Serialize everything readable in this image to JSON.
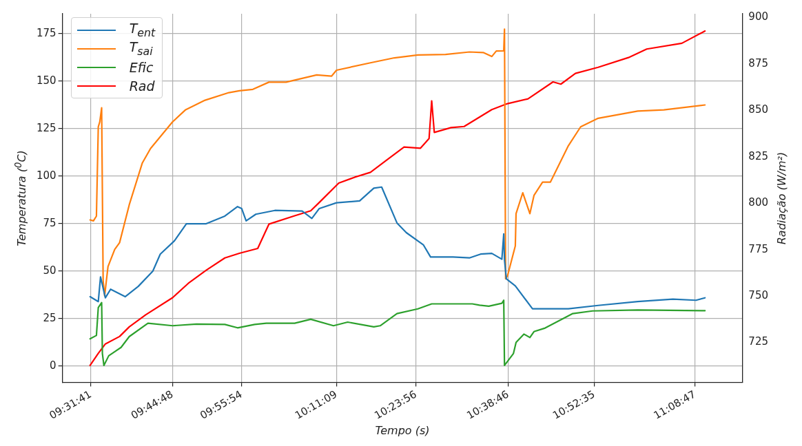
{
  "chart_data": {
    "type": "line",
    "xlabel": "Tempo (s)",
    "ylabel": "Temperatura ($^{0}$C)",
    "y2label": "Radiação (W/m²)",
    "xlim": [
      9.452,
      11.273
    ],
    "xticks": [
      {
        "value": 9.5281,
        "label": "09:31:41"
      },
      {
        "value": 9.7467,
        "label": "09:44:48"
      },
      {
        "value": 9.9317,
        "label": "09:55:54"
      },
      {
        "value": 10.1858,
        "label": "10:11:09"
      },
      {
        "value": 10.3989,
        "label": "10:23:56"
      },
      {
        "value": 10.6461,
        "label": "10:38:46"
      },
      {
        "value": 10.8764,
        "label": "10:52:35"
      },
      {
        "value": 11.1464,
        "label": "11:08:47"
      }
    ],
    "ylim": [
      -8.5,
      185.5
    ],
    "yticks": [
      0,
      25,
      50,
      75,
      100,
      125,
      150,
      175
    ],
    "y2lim": [
      703.5,
      902
    ],
    "y2ticks": [
      725,
      750,
      775,
      800,
      825,
      850,
      875,
      900
    ],
    "grid": true,
    "legend": "top left",
    "marker": "none",
    "line_style": "solid",
    "series": [
      {
        "name": "T$_{ent}$",
        "color": "#1f77b4",
        "x": [
          9.526,
          9.548,
          9.554,
          9.567,
          9.581,
          9.62,
          9.655,
          9.694,
          9.714,
          9.752,
          9.784,
          9.837,
          9.887,
          9.921,
          9.932,
          9.944,
          9.97,
          10.021,
          10.094,
          10.12,
          10.14,
          10.186,
          10.248,
          10.286,
          10.307,
          10.348,
          10.373,
          10.419,
          10.438,
          10.498,
          10.542,
          10.572,
          10.602,
          10.629,
          10.634,
          10.636,
          10.641,
          10.665,
          10.711,
          10.807,
          10.887,
          10.993,
          11.087,
          11.149,
          11.173
        ],
        "values": [
          36.6,
          34,
          47,
          36,
          40.5,
          36.6,
          42,
          50,
          59,
          66,
          75,
          75,
          79,
          84,
          83,
          76.5,
          80,
          82,
          81.7,
          77.8,
          83,
          86,
          87,
          93.7,
          94.3,
          75.4,
          70.3,
          63.8,
          57.5,
          57.5,
          57,
          59,
          59.4,
          56.3,
          69.6,
          56,
          46,
          42.3,
          30.2,
          30.2,
          32,
          34,
          35.3,
          34.7,
          36
        ]
      },
      {
        "name": "T$_{sai}$",
        "color": "#ff7f0e",
        "x": [
          9.526,
          9.535,
          9.543,
          9.548,
          9.552,
          9.557,
          9.561,
          9.565,
          9.574,
          9.592,
          9.605,
          9.631,
          9.666,
          9.688,
          9.747,
          9.782,
          9.834,
          9.898,
          9.926,
          9.962,
          10.005,
          10.051,
          10.133,
          10.173,
          10.186,
          10.277,
          10.341,
          10.404,
          10.478,
          10.542,
          10.579,
          10.602,
          10.614,
          10.634,
          10.636,
          10.639,
          10.644,
          10.665,
          10.667,
          10.685,
          10.704,
          10.715,
          10.738,
          10.759,
          10.807,
          10.84,
          10.887,
          10.993,
          11.063,
          11.173
        ],
        "values": [
          77,
          76.5,
          79,
          126,
          128.6,
          136,
          45,
          37,
          52.4,
          61.5,
          65,
          85,
          107,
          114.6,
          128.6,
          135,
          140,
          144,
          145,
          145.7,
          149.5,
          149.5,
          153.3,
          152.7,
          155.8,
          159.7,
          162.3,
          163.8,
          164.1,
          165.4,
          165.1,
          163,
          165.9,
          166,
          177.4,
          46,
          47.5,
          63.3,
          80.3,
          91.3,
          80.3,
          89.9,
          96.9,
          96.9,
          116,
          126,
          130.5,
          134.3,
          134.9,
          137.5
        ]
      },
      {
        "name": "Efic",
        "color": "#2ca02c",
        "x": [
          9.526,
          9.543,
          9.548,
          9.557,
          9.559,
          9.563,
          9.576,
          9.609,
          9.631,
          9.681,
          9.747,
          9.811,
          9.887,
          9.921,
          9.967,
          9.998,
          10.074,
          10.117,
          10.178,
          10.216,
          10.286,
          10.303,
          10.348,
          10.404,
          10.441,
          10.55,
          10.569,
          10.594,
          10.629,
          10.634,
          10.636,
          10.66,
          10.667,
          10.688,
          10.704,
          10.715,
          10.745,
          10.819,
          10.872,
          10.993,
          11.173
        ],
        "values": [
          14.4,
          16.2,
          30.9,
          33.5,
          6.7,
          0.4,
          5.5,
          9.9,
          15.6,
          22.6,
          21.3,
          22.2,
          22,
          20.2,
          22,
          22.6,
          22.6,
          24.7,
          21.3,
          23.2,
          20.7,
          21.3,
          27.7,
          30.2,
          32.8,
          32.8,
          32.1,
          31.6,
          33.1,
          34.7,
          0.4,
          6.7,
          12.5,
          16.9,
          15.1,
          18.2,
          20.1,
          27.7,
          29.1,
          29.6,
          29.2
        ]
      },
      {
        "name": "Rad",
        "color": "#ff0000",
        "axis": "y2",
        "x": [
          9.526,
          9.548,
          9.567,
          9.605,
          9.631,
          9.675,
          9.747,
          9.789,
          9.837,
          9.887,
          9.926,
          9.975,
          10.005,
          10.074,
          10.117,
          10.14,
          10.192,
          10.235,
          10.277,
          10.316,
          10.367,
          10.411,
          10.434,
          10.441,
          10.448,
          10.493,
          10.528,
          10.602,
          10.644,
          10.699,
          10.766,
          10.787,
          10.826,
          10.887,
          10.968,
          11.017,
          11.111,
          11.173
        ],
        "values": [
          712.6,
          719.1,
          724.2,
          728.2,
          733.4,
          739.9,
          749.1,
          756.8,
          763.9,
          770.5,
          773,
          775.6,
          788.7,
          793.2,
          795.9,
          800.4,
          810.8,
          814,
          816.6,
          822.5,
          830.2,
          829.6,
          834.8,
          855.1,
          838.1,
          840.7,
          841.3,
          850.4,
          853.6,
          856.2,
          865.3,
          864.1,
          869.9,
          873.2,
          878.4,
          883,
          886.1,
          892.7
        ]
      }
    ]
  }
}
